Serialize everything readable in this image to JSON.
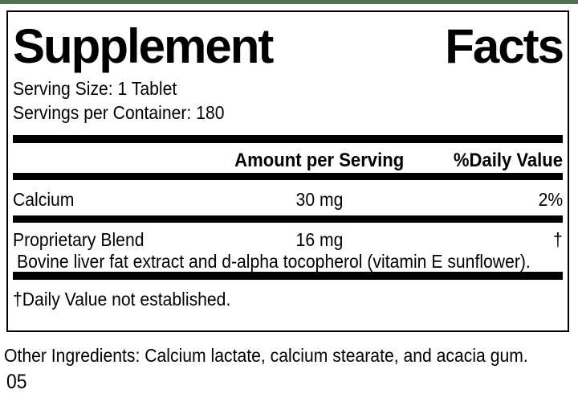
{
  "colors": {
    "accent_green": "#4e7355",
    "rule_black": "#000000"
  },
  "title": {
    "left": "Supplement",
    "right": "Facts"
  },
  "serving": {
    "size_line": "Serving Size: 1 Tablet",
    "container_line": "Servings per Container: 180"
  },
  "table": {
    "header": {
      "amount_label": "Amount per Serving",
      "daily_value_label": "%Daily Value"
    },
    "rows": [
      {
        "name": "Calcium",
        "amount": "30 mg",
        "daily_value": "2%"
      },
      {
        "name": "Proprietary Blend",
        "amount": "16 mg",
        "daily_value": "†",
        "description": "Bovine liver fat extract and d-alpha tocopherol (vitamin E sunflower)."
      }
    ],
    "footnote": "†Daily Value not established."
  },
  "footer": {
    "other_ingredients": "Other Ingredients: Calcium lactate, calcium stearate, and acacia gum.",
    "code": "05"
  }
}
